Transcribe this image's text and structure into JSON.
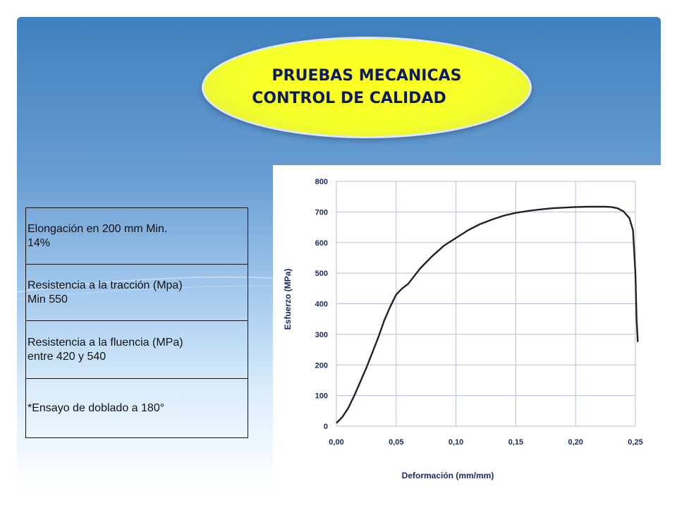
{
  "title": {
    "line1": "PRUEBAS MECANICAS",
    "line2": "CONTROL DE CALIDAD"
  },
  "specs": [
    {
      "line1": "Elongación en 200 mm   Min.",
      "line2": "14%"
    },
    {
      "line1": "Resistencia a la tracción (Mpa)",
      "line2": "Min 550"
    },
    {
      "line1": "Resistencia a la fluencia (MPa)",
      "line2": "entre 420 y 540"
    },
    {
      "line1": "*Ensayo de doblado a 180°",
      "line2": ""
    }
  ],
  "colors": {
    "title_fill": "#ffff20",
    "title_text": "#0d1a5c",
    "curve": "#222222",
    "grid": "#b7c1d6"
  },
  "chart_data": {
    "type": "line",
    "xlabel": "Deformación (mm/mm)",
    "ylabel": "Esfuerzo (MPa)",
    "xlim": [
      0,
      0.25
    ],
    "ylim": [
      0,
      800
    ],
    "x_ticks": [
      "0,00",
      "0,05",
      "0,10",
      "0,15",
      "0,20",
      "0,25"
    ],
    "y_ticks": [
      "0",
      "100",
      "200",
      "300",
      "400",
      "500",
      "600",
      "700",
      "800"
    ],
    "grid": true,
    "series": [
      {
        "x": [
          0,
          0.005,
          0.01,
          0.015,
          0.02,
          0.025,
          0.03,
          0.035,
          0.04,
          0.045,
          0.05,
          0.055,
          0.06,
          0.07,
          0.08,
          0.09,
          0.1,
          0.11,
          0.12,
          0.13,
          0.14,
          0.15,
          0.16,
          0.17,
          0.18,
          0.19,
          0.2,
          0.21,
          0.22,
          0.225,
          0.23,
          0.235,
          0.24,
          0.245,
          0.248,
          0.25,
          0.251,
          0.252
        ],
        "y": [
          10,
          30,
          60,
          100,
          145,
          190,
          240,
          290,
          345,
          390,
          430,
          450,
          465,
          515,
          555,
          590,
          615,
          640,
          660,
          675,
          688,
          697,
          703,
          708,
          712,
          714,
          716,
          717,
          717,
          717,
          716,
          712,
          702,
          680,
          640,
          500,
          350,
          275
        ]
      }
    ]
  }
}
